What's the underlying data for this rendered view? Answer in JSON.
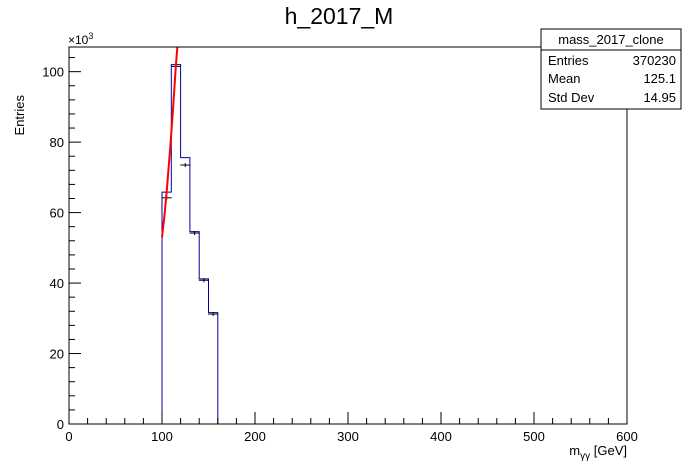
{
  "chart_data": {
    "type": "histogram",
    "title": "h_2017_M",
    "xlabel_main": "m",
    "xlabel_sub": "γγ",
    "xlabel_unit": "[GeV]",
    "ylabel": "Entries",
    "y_multiplier_base": "×10",
    "y_multiplier_exp": "3",
    "xlim": [
      0,
      600
    ],
    "ylim": [
      0,
      107
    ],
    "x_ticks": [
      0,
      100,
      200,
      300,
      400,
      500,
      600
    ],
    "y_ticks": [
      0,
      20,
      40,
      60,
      80,
      100
    ],
    "bin_edges": [
      100,
      110,
      120,
      130,
      140,
      150,
      160
    ],
    "bin_contents": [
      65.8,
      102.0,
      75.6,
      54.6,
      41.2,
      31.6
    ],
    "data_points": [
      {
        "x": 105,
        "y": 64.2
      },
      {
        "x": 115,
        "y": 101.5
      },
      {
        "x": 125,
        "y": 73.5
      },
      {
        "x": 135,
        "y": 54.2
      },
      {
        "x": 145,
        "y": 40.8
      },
      {
        "x": 155,
        "y": 31.2
      }
    ],
    "fit": {
      "color": "#ff0000",
      "x": [
        100,
        103,
        106,
        109,
        112,
        115,
        116.5
      ],
      "y": [
        53,
        60,
        69,
        79,
        90,
        102,
        107
      ]
    },
    "line_color": "#000099",
    "grid": false,
    "stats_box": {
      "title": "mass_2017_clone",
      "placement": "top-right",
      "rows": [
        {
          "label": "Entries",
          "value": "370230"
        },
        {
          "label": "Mean",
          "value": "125.1"
        },
        {
          "label": "Std Dev",
          "value": "14.95"
        }
      ]
    }
  }
}
